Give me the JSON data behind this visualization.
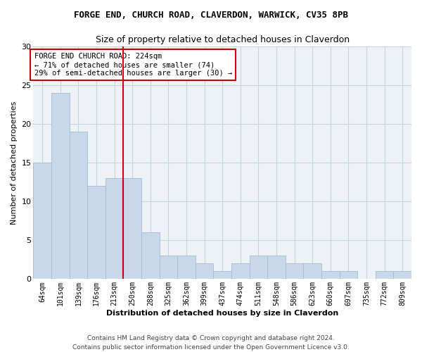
{
  "title": "FORGE END, CHURCH ROAD, CLAVERDON, WARWICK, CV35 8PB",
  "subtitle": "Size of property relative to detached houses in Claverdon",
  "xlabel": "Distribution of detached houses by size in Claverdon",
  "ylabel": "Number of detached properties",
  "categories": [
    "64sqm",
    "101sqm",
    "139sqm",
    "176sqm",
    "213sqm",
    "250sqm",
    "288sqm",
    "325sqm",
    "362sqm",
    "399sqm",
    "437sqm",
    "474sqm",
    "511sqm",
    "548sqm",
    "586sqm",
    "623sqm",
    "660sqm",
    "697sqm",
    "735sqm",
    "772sqm",
    "809sqm"
  ],
  "values": [
    15,
    24,
    19,
    12,
    13,
    13,
    6,
    3,
    3,
    2,
    1,
    2,
    3,
    3,
    2,
    2,
    1,
    1,
    0,
    1,
    1
  ],
  "bar_color": "#c8d8ea",
  "bar_edge_color": "#a0bcd4",
  "grid_color": "#c8d4e0",
  "vline_x": 4.5,
  "vline_color": "#cc0000",
  "annotation_line1": "FORGE END CHURCH ROAD: 224sqm",
  "annotation_line2": "← 71% of detached houses are smaller (74)",
  "annotation_line3": "29% of semi-detached houses are larger (30) →",
  "annotation_box_color": "#ffffff",
  "annotation_box_edge": "#cc0000",
  "ylim": [
    0,
    30
  ],
  "yticks": [
    0,
    5,
    10,
    15,
    20,
    25,
    30
  ],
  "footnote1": "Contains HM Land Registry data © Crown copyright and database right 2024.",
  "footnote2": "Contains public sector information licensed under the Open Government Licence v3.0."
}
